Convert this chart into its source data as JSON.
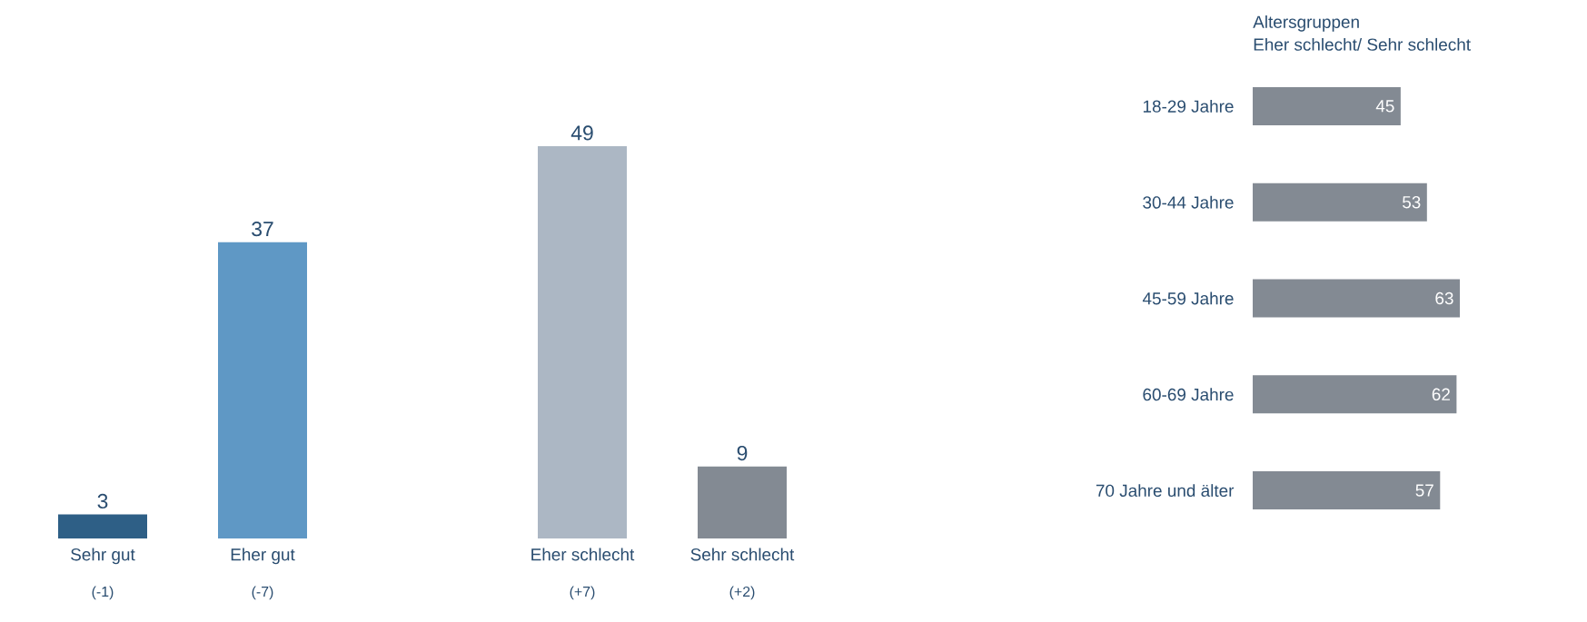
{
  "chart_data": [
    {
      "type": "bar",
      "categories": [
        "Sehr gut",
        "Eher gut",
        null,
        "Eher schlecht",
        "Sehr schlecht"
      ],
      "values": [
        3,
        37,
        null,
        49,
        9
      ],
      "colors": [
        "#2e5f86",
        "#5f98c5",
        null,
        "#acb7c4",
        "#838a93"
      ],
      "data_labels": true,
      "annotations": [
        "(-1)",
        "(-7)",
        "(+7)",
        "(+2)"
      ]
    },
    {
      "type": "bar",
      "orientation": "horizontal",
      "title": "Altersgruppen",
      "subtitle": "Eher schlecht/ Sehr schlecht",
      "categories": [
        "18-29 Jahre",
        "30-44 Jahre",
        "45-59 Jahre",
        "60-69 Jahre",
        "70 Jahre und älter"
      ],
      "values": [
        45,
        53,
        63,
        62,
        57
      ],
      "color": "#838a93",
      "data_labels": true
    }
  ]
}
